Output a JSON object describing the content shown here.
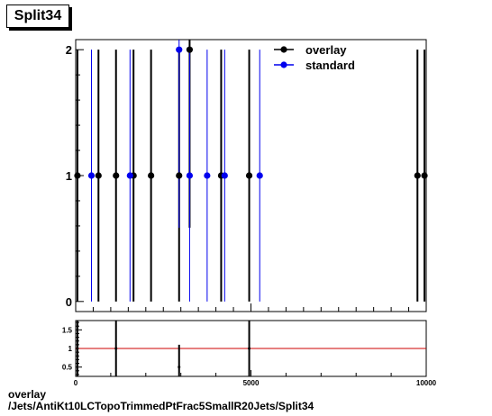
{
  "title": "Split34",
  "footer": {
    "line1": "overlay",
    "line2": "/Jets/AntiKt10LCTopoTrimmedPtFrac5SmallR20Jets/Split34"
  },
  "chart_data": [
    {
      "type": "scatter",
      "title": "Split34",
      "xlim": [
        0,
        10000
      ],
      "ylim": [
        -0.08,
        2.08
      ],
      "yticks": [
        0,
        1,
        2
      ],
      "legend": "top-right",
      "series": [
        {
          "name": "overlay",
          "color": "#000000",
          "points": [
            {
              "x": 50,
              "y": 1
            },
            {
              "x": 650,
              "y": 1
            },
            {
              "x": 1150,
              "y": 1
            },
            {
              "x": 1650,
              "y": 1
            },
            {
              "x": 2150,
              "y": 1
            },
            {
              "x": 2950,
              "y": 1
            },
            {
              "x": 3250,
              "y": 2
            },
            {
              "x": 4150,
              "y": 1
            },
            {
              "x": 4950,
              "y": 1
            },
            {
              "x": 9750,
              "y": 1
            },
            {
              "x": 9950,
              "y": 1
            }
          ]
        },
        {
          "name": "standard",
          "color": "#0000ee",
          "points": [
            {
              "x": 450,
              "y": 1
            },
            {
              "x": 1550,
              "y": 1
            },
            {
              "x": 2950,
              "y": 2
            },
            {
              "x": 3250,
              "y": 1
            },
            {
              "x": 3750,
              "y": 1
            },
            {
              "x": 4250,
              "y": 1
            },
            {
              "x": 5250,
              "y": 1
            }
          ]
        }
      ]
    },
    {
      "type": "scatter",
      "title": "",
      "xlim": [
        0,
        10000
      ],
      "ylim": [
        0.25,
        1.75
      ],
      "yticks": [
        0.5,
        1,
        1.5
      ],
      "xticks": [
        0,
        5000,
        10000
      ],
      "xlabel": "Split34",
      "reference_line": {
        "y": 1,
        "color": "#cc0000"
      },
      "ratio_points": [
        {
          "x": 50,
          "y": 1,
          "err": 0.75
        },
        {
          "x": 1150,
          "y": 1,
          "err": 0.75
        },
        {
          "x": 2950,
          "y": 0.5,
          "err": 0.6
        },
        {
          "x": 4950,
          "y": 1,
          "err": 0.75
        }
      ]
    }
  ]
}
